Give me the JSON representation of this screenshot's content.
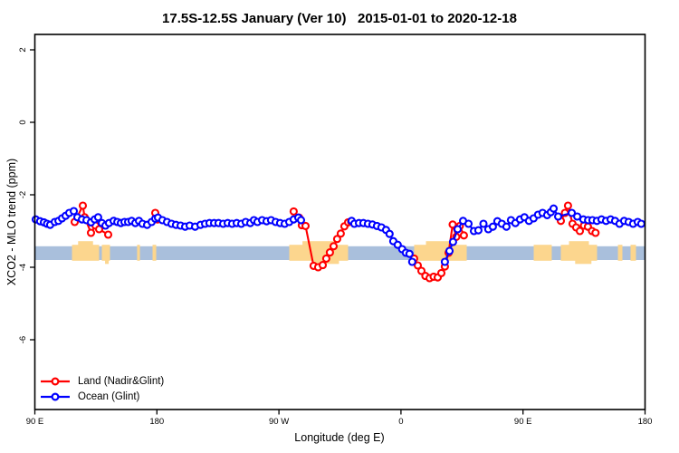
{
  "chart_data": {
    "type": "line",
    "title": "17.5S-12.5S January (Ver 10)   2015-01-01 to 2020-12-18",
    "xlabel": "Longitude (deg E)",
    "ylabel": "XCO2 - MLO trend (ppm)",
    "ylim": [
      -7.98,
      2.38
    ],
    "grid": false,
    "legend_position": "bottom-left inside plot",
    "x_ticks": [
      {
        "d": 0,
        "label": "90 E"
      },
      {
        "d": 90,
        "label": "180"
      },
      {
        "d": 180,
        "label": "90 W"
      },
      {
        "d": 270,
        "label": "0"
      },
      {
        "d": 360,
        "label": "90 E"
      },
      {
        "d": 450,
        "label": "180"
      }
    ],
    "y_ticks": [
      {
        "v": 2,
        "label": "2"
      },
      {
        "v": 0,
        "label": "0"
      },
      {
        "v": -2,
        "label": "-2"
      },
      {
        "v": -4,
        "label": "-4"
      },
      {
        "v": -6,
        "label": "-6"
      }
    ],
    "band": {
      "v_top": -3.42,
      "v_bottom": -3.8,
      "color": "#a9bfdc"
    },
    "patch_color": "#fcd68e",
    "patch_v_top": -3.38,
    "patch_v_bottom": -3.82,
    "patches": [
      {
        "d1": 27.4,
        "d2": 47.4,
        "bump_top": true,
        "bump_bottom": false
      },
      {
        "d1": 49.4,
        "d2": 55.4,
        "bump_top": false,
        "bump_bottom": true
      },
      {
        "d1": 75.4,
        "d2": 77.5,
        "bump_top": false,
        "bump_bottom": false
      },
      {
        "d1": 86.8,
        "d2": 89.5,
        "bump_top": false,
        "bump_bottom": false
      },
      {
        "d1": 187.6,
        "d2": 231.0,
        "bump_top": true,
        "bump_bottom": true
      },
      {
        "d1": 279.7,
        "d2": 318.5,
        "bump_top": true,
        "bump_bottom": false
      },
      {
        "d1": 367.9,
        "d2": 381.2,
        "bump_top": false,
        "bump_bottom": false
      },
      {
        "d1": 387.9,
        "d2": 414.6,
        "bump_top": true,
        "bump_bottom": true
      },
      {
        "d1": 430.0,
        "d2": 433.3,
        "bump_top": false,
        "bump_bottom": false
      },
      {
        "d1": 439.3,
        "d2": 443.3,
        "bump_top": false,
        "bump_bottom": false
      }
    ],
    "series": [
      {
        "id": "land",
        "name": "Land (Nadir&Glint)",
        "color": "#ff0000",
        "marker": "open-circle",
        "segments": [
          [
            [
              29.4,
              -2.75
            ],
            [
              35.4,
              -2.3
            ],
            [
              36.7,
              -2.62
            ],
            [
              41.4,
              -3.05
            ],
            [
              44.7,
              -2.85
            ],
            [
              47.4,
              -2.95
            ],
            [
              54.1,
              -3.1
            ]
          ],
          [
            [
              88.8,
              -2.5
            ],
            [
              90.5,
              -2.68
            ]
          ],
          [
            [
              190.9,
              -2.46
            ],
            [
              194.9,
              -2.63
            ],
            [
              196.9,
              -2.84
            ],
            [
              199.6,
              -2.86
            ],
            [
              205.6,
              -3.96
            ],
            [
              208.9,
              -4.0
            ],
            [
              212.3,
              -3.94
            ],
            [
              214.9,
              -3.76
            ],
            [
              217.6,
              -3.59
            ],
            [
              220.3,
              -3.42
            ],
            [
              222.9,
              -3.22
            ],
            [
              225.6,
              -3.07
            ],
            [
              228.3,
              -2.87
            ],
            [
              231.0,
              -2.76
            ],
            [
              233.3,
              -2.74
            ]
          ],
          [
            [
              279.7,
              -3.76
            ],
            [
              282.4,
              -3.95
            ],
            [
              285.1,
              -4.1
            ],
            [
              288.0,
              -4.24
            ],
            [
              291.1,
              -4.3
            ],
            [
              294.1,
              -4.26
            ],
            [
              297.1,
              -4.28
            ],
            [
              299.8,
              -4.16
            ],
            [
              302.4,
              -3.98
            ],
            [
              305.1,
              -3.6
            ],
            [
              308.1,
              -2.82
            ],
            [
              310.8,
              -3.16
            ],
            [
              313.4,
              -2.86
            ],
            [
              316.4,
              -3.12
            ]
          ],
          [
            [
              387.9,
              -2.72
            ],
            [
              390.9,
              -2.5
            ],
            [
              393.2,
              -2.3
            ],
            [
              396.5,
              -2.8
            ],
            [
              399.2,
              -2.9
            ],
            [
              401.9,
              -3.0
            ],
            [
              404.9,
              -2.85
            ],
            [
              407.9,
              -2.88
            ],
            [
              410.9,
              -3.0
            ],
            [
              413.5,
              -3.05
            ]
          ]
        ]
      },
      {
        "id": "ocean",
        "name": "Ocean (Glint)",
        "color": "#0000ff",
        "marker": "open-circle",
        "segments": [
          [
            [
              0.7,
              -2.68
            ],
            [
              3.9,
              -2.73
            ],
            [
              6.7,
              -2.76
            ],
            [
              9.0,
              -2.8
            ],
            [
              11.3,
              -2.83
            ],
            [
              14.7,
              -2.75
            ],
            [
              17.4,
              -2.72
            ],
            [
              20.0,
              -2.65
            ],
            [
              22.7,
              -2.58
            ],
            [
              25.4,
              -2.5
            ],
            [
              28.7,
              -2.45
            ],
            [
              31.4,
              -2.62
            ],
            [
              34.7,
              -2.68
            ],
            [
              38.1,
              -2.7
            ],
            [
              41.4,
              -2.76
            ],
            [
              44.1,
              -2.68
            ],
            [
              46.7,
              -2.62
            ],
            [
              49.4,
              -2.78
            ],
            [
              52.1,
              -2.85
            ],
            [
              54.7,
              -2.78
            ],
            [
              58.1,
              -2.72
            ],
            [
              60.8,
              -2.75
            ],
            [
              63.4,
              -2.78
            ],
            [
              66.1,
              -2.75
            ],
            [
              68.8,
              -2.75
            ],
            [
              71.4,
              -2.72
            ],
            [
              74.1,
              -2.78
            ],
            [
              76.8,
              -2.72
            ],
            [
              79.4,
              -2.8
            ],
            [
              82.8,
              -2.83
            ],
            [
              86.1,
              -2.75
            ],
            [
              88.8,
              -2.66
            ],
            [
              90.8,
              -2.63
            ],
            [
              94.1,
              -2.7
            ],
            [
              97.5,
              -2.75
            ],
            [
              100.8,
              -2.8
            ],
            [
              104.1,
              -2.83
            ],
            [
              107.5,
              -2.85
            ],
            [
              110.8,
              -2.88
            ],
            [
              114.2,
              -2.85
            ],
            [
              118.2,
              -2.88
            ],
            [
              122.2,
              -2.83
            ],
            [
              125.5,
              -2.8
            ],
            [
              128.8,
              -2.78
            ],
            [
              132.2,
              -2.78
            ],
            [
              135.5,
              -2.78
            ],
            [
              138.9,
              -2.8
            ],
            [
              142.2,
              -2.78
            ],
            [
              145.5,
              -2.8
            ],
            [
              148.9,
              -2.78
            ],
            [
              152.2,
              -2.8
            ],
            [
              155.5,
              -2.75
            ],
            [
              158.9,
              -2.78
            ],
            [
              161.6,
              -2.7
            ],
            [
              164.2,
              -2.75
            ],
            [
              167.6,
              -2.7
            ],
            [
              170.9,
              -2.73
            ],
            [
              174.2,
              -2.7
            ],
            [
              177.6,
              -2.75
            ],
            [
              180.9,
              -2.78
            ],
            [
              184.3,
              -2.8
            ],
            [
              187.6,
              -2.75
            ],
            [
              190.9,
              -2.68
            ],
            [
              194.3,
              -2.63
            ],
            [
              196.3,
              -2.7
            ]
          ],
          [
            [
              233.6,
              -2.72
            ],
            [
              235.6,
              -2.8
            ],
            [
              239.0,
              -2.78
            ],
            [
              242.3,
              -2.78
            ],
            [
              245.6,
              -2.8
            ],
            [
              249.0,
              -2.82
            ],
            [
              252.3,
              -2.86
            ],
            [
              255.6,
              -2.9
            ],
            [
              259.0,
              -2.97
            ],
            [
              261.6,
              -3.08
            ],
            [
              264.3,
              -3.28
            ],
            [
              267.6,
              -3.38
            ],
            [
              270.9,
              -3.5
            ],
            [
              273.6,
              -3.6
            ],
            [
              276.3,
              -3.63
            ],
            [
              278.3,
              -3.85
            ]
          ],
          [
            [
              302.4,
              -3.85
            ],
            [
              305.8,
              -3.55
            ],
            [
              308.4,
              -3.3
            ],
            [
              311.8,
              -2.95
            ],
            [
              315.8,
              -2.72
            ],
            [
              319.8,
              -2.8
            ],
            [
              323.8,
              -3.0
            ],
            [
              327.1,
              -2.98
            ],
            [
              330.8,
              -2.8
            ],
            [
              334.4,
              -2.95
            ],
            [
              337.8,
              -2.88
            ],
            [
              341.1,
              -2.73
            ],
            [
              344.4,
              -2.8
            ],
            [
              347.8,
              -2.88
            ],
            [
              351.1,
              -2.7
            ],
            [
              354.4,
              -2.78
            ],
            [
              357.8,
              -2.68
            ],
            [
              361.1,
              -2.62
            ],
            [
              364.4,
              -2.72
            ],
            [
              367.8,
              -2.65
            ],
            [
              371.1,
              -2.55
            ],
            [
              374.4,
              -2.5
            ],
            [
              377.8,
              -2.56
            ],
            [
              380.5,
              -2.48
            ],
            [
              382.6,
              -2.38
            ],
            [
              385.9,
              -2.6
            ],
            [
              395.9,
              -2.5
            ],
            [
              400.0,
              -2.6
            ],
            [
              404.5,
              -2.68
            ],
            [
              408.0,
              -2.7
            ],
            [
              411.2,
              -2.7
            ],
            [
              414.5,
              -2.72
            ],
            [
              417.9,
              -2.68
            ],
            [
              421.2,
              -2.72
            ],
            [
              424.6,
              -2.68
            ],
            [
              427.9,
              -2.72
            ],
            [
              431.2,
              -2.8
            ],
            [
              434.6,
              -2.72
            ],
            [
              437.9,
              -2.75
            ],
            [
              441.2,
              -2.8
            ],
            [
              444.6,
              -2.75
            ],
            [
              447.2,
              -2.8
            ]
          ]
        ]
      }
    ]
  }
}
